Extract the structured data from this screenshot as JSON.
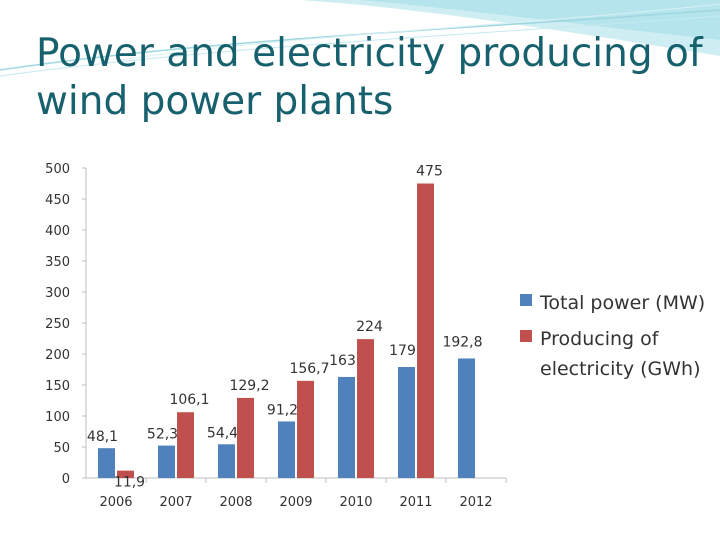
{
  "slide": {
    "title": "Power and electricity producing of wind power plants"
  },
  "colors": {
    "title": "#17606d",
    "swoosh": "#a8dde6",
    "total_power": "#4f81bd",
    "electricity": "#c0504d",
    "axis": "#bfbfbf",
    "text": "#333333"
  },
  "chart_data": {
    "type": "bar",
    "title": "",
    "xlabel": "",
    "ylabel": "",
    "categories": [
      "2006",
      "2007",
      "2008",
      "2009",
      "2010",
      "2011",
      "2012"
    ],
    "series": [
      {
        "name": "Total power (MW)",
        "values": [
          48.1,
          52.3,
          54.4,
          91.2,
          163,
          179,
          192.8
        ],
        "labels": [
          "48,1",
          "52,3",
          "54,4",
          "91,2",
          "163",
          "179",
          "192,8"
        ]
      },
      {
        "name": "Producing of electricity (GWh)",
        "values": [
          11.9,
          106.1,
          129.2,
          156.7,
          224,
          475,
          null
        ],
        "labels": [
          "11,9",
          "106,1",
          "129,2",
          "156,7",
          "224",
          "475",
          ""
        ]
      }
    ],
    "ylim": [
      0,
      500
    ],
    "yticks": [
      "0",
      "50",
      "100",
      "150",
      "200",
      "250",
      "300",
      "350",
      "400",
      "450",
      "500"
    ],
    "grid": false,
    "legend_position": "right"
  }
}
